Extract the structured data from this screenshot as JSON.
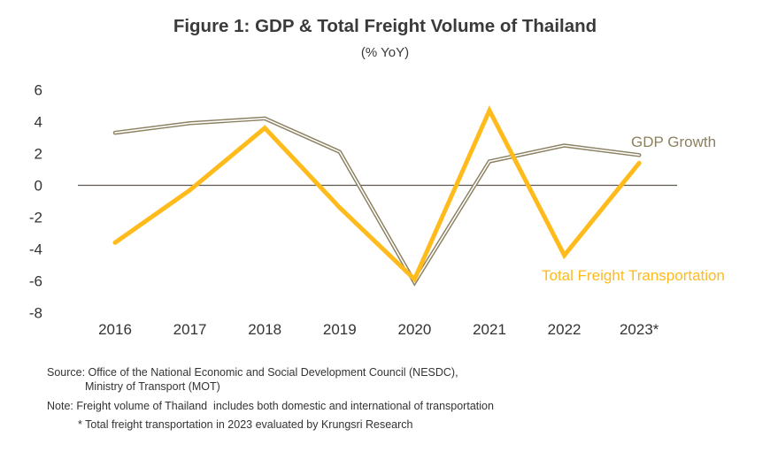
{
  "chart_data": {
    "type": "line",
    "title": "Figure 1: GDP &  Total Freight Volume of Thailand",
    "subtitle": "(% YoY)",
    "xlabel": "",
    "ylabel": "",
    "categories": [
      "2016",
      "2017",
      "2018",
      "2019",
      "2020",
      "2021",
      "2022",
      "2023*"
    ],
    "ylim": [
      -8,
      6
    ],
    "yticks": [
      "6",
      "4",
      "2",
      "0",
      "-2",
      "-4",
      "-6",
      "-8"
    ],
    "ytick_values": [
      6,
      4,
      2,
      0,
      -2,
      -4,
      -6,
      -8
    ],
    "grid": false,
    "zero_line": true,
    "series": [
      {
        "name": "GDP Growth",
        "label": "GDP Growth",
        "color": "#8b8060",
        "style": "double-line",
        "values": [
          3.3,
          3.9,
          4.2,
          2.1,
          -6.1,
          1.5,
          2.5,
          1.9
        ]
      },
      {
        "name": "Total Freight Transportation",
        "label": "Total Freight Transportation",
        "color": "#ffbb1c",
        "style": "thick-line",
        "values": [
          -3.6,
          -0.3,
          3.6,
          -1.4,
          -5.9,
          4.7,
          -4.4,
          1.4
        ]
      }
    ]
  },
  "footnotes": {
    "source_line1": "Source: Office of the National Economic and Social Development Council (NESDC),",
    "source_line2": "Ministry of Transport (MOT)",
    "note_line1": "Note: Freight volume of Thailand  includes both domestic and international of transportation",
    "note_line2": "* Total freight transportation in 2023 evaluated by Krungsri Research"
  },
  "colors": {
    "axis_text": "#333333",
    "zero_line": "#5e5650",
    "gdp": "#8b8060",
    "freight": "#ffbb1c"
  }
}
